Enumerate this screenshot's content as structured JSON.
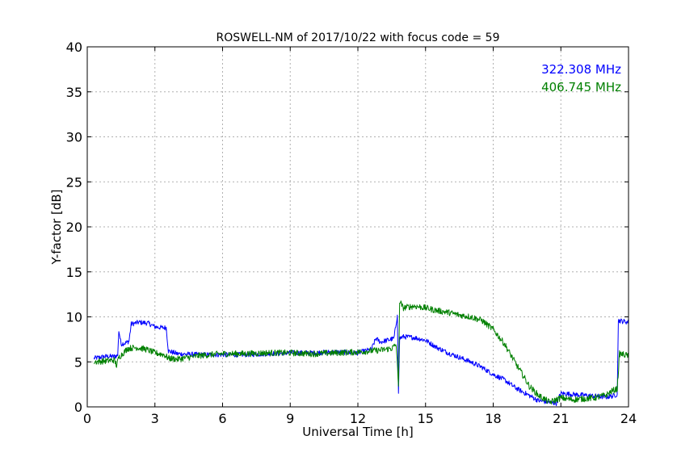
{
  "chart_data": {
    "type": "line",
    "title": "ROSWELL-NM of 2017/10/22 with focus code = 59",
    "xlabel": "Universal Time [h]",
    "ylabel": "Y-factor [dB]",
    "xlim": [
      0,
      24
    ],
    "ylim": [
      0,
      40
    ],
    "xticks": [
      0,
      3,
      6,
      9,
      12,
      15,
      18,
      21,
      24
    ],
    "yticks": [
      0,
      5,
      10,
      15,
      20,
      25,
      30,
      35,
      40
    ],
    "grid": true,
    "legend_position": "top-right",
    "series": [
      {
        "name": "322.308 MHz",
        "color": "#0000ff",
        "points": [
          [
            0.3,
            5.4
          ],
          [
            0.8,
            5.6
          ],
          [
            1.2,
            5.6
          ],
          [
            1.35,
            5.7
          ],
          [
            1.4,
            8.5
          ],
          [
            1.5,
            7.0
          ],
          [
            1.7,
            7.1
          ],
          [
            1.85,
            7.3
          ],
          [
            1.95,
            9.2
          ],
          [
            2.3,
            9.4
          ],
          [
            2.7,
            9.3
          ],
          [
            3.0,
            8.9
          ],
          [
            3.3,
            8.8
          ],
          [
            3.5,
            8.8
          ],
          [
            3.6,
            6.2
          ],
          [
            4.0,
            5.9
          ],
          [
            5.0,
            5.8
          ],
          [
            6.0,
            5.8
          ],
          [
            7.0,
            5.8
          ],
          [
            8.0,
            5.9
          ],
          [
            9.0,
            6.0
          ],
          [
            10.0,
            6.0
          ],
          [
            11.0,
            6.1
          ],
          [
            12.0,
            6.0
          ],
          [
            12.6,
            6.4
          ],
          [
            12.8,
            7.6
          ],
          [
            13.0,
            7.2
          ],
          [
            13.3,
            7.4
          ],
          [
            13.6,
            7.6
          ],
          [
            13.75,
            10.2
          ],
          [
            13.8,
            1.5
          ],
          [
            13.85,
            7.6
          ],
          [
            14.0,
            7.8
          ],
          [
            14.5,
            7.7
          ],
          [
            15.0,
            7.4
          ],
          [
            15.5,
            6.6
          ],
          [
            16.0,
            6.0
          ],
          [
            16.5,
            5.5
          ],
          [
            17.0,
            5.0
          ],
          [
            17.5,
            4.4
          ],
          [
            18.0,
            3.6
          ],
          [
            18.5,
            3.0
          ],
          [
            19.0,
            2.1
          ],
          [
            19.5,
            1.4
          ],
          [
            20.0,
            0.7
          ],
          [
            20.5,
            0.5
          ],
          [
            20.8,
            0.4
          ],
          [
            21.0,
            1.5
          ],
          [
            21.5,
            1.4
          ],
          [
            22.0,
            1.3
          ],
          [
            22.5,
            1.2
          ],
          [
            23.0,
            1.1
          ],
          [
            23.3,
            1.2
          ],
          [
            23.5,
            1.4
          ],
          [
            23.55,
            9.6
          ],
          [
            24.0,
            9.4
          ]
        ]
      },
      {
        "name": "406.745 MHz",
        "color": "#008000",
        "points": [
          [
            0.3,
            5.0
          ],
          [
            0.8,
            5.1
          ],
          [
            1.2,
            5.2
          ],
          [
            1.3,
            4.6
          ],
          [
            1.4,
            5.5
          ],
          [
            1.6,
            6.0
          ],
          [
            1.8,
            6.5
          ],
          [
            2.2,
            6.6
          ],
          [
            2.6,
            6.4
          ],
          [
            3.0,
            6.0
          ],
          [
            3.4,
            5.8
          ],
          [
            3.6,
            5.4
          ],
          [
            4.0,
            5.3
          ],
          [
            5.0,
            5.7
          ],
          [
            6.0,
            5.9
          ],
          [
            7.0,
            5.9
          ],
          [
            8.0,
            6.0
          ],
          [
            9.0,
            6.0
          ],
          [
            10.0,
            5.9
          ],
          [
            11.0,
            6.0
          ],
          [
            12.0,
            6.1
          ],
          [
            13.0,
            6.3
          ],
          [
            13.5,
            6.5
          ],
          [
            13.7,
            6.9
          ],
          [
            13.8,
            2.3
          ],
          [
            13.85,
            11.8
          ],
          [
            14.0,
            11.0
          ],
          [
            14.5,
            11.2
          ],
          [
            15.0,
            11.0
          ],
          [
            15.5,
            10.7
          ],
          [
            16.0,
            10.5
          ],
          [
            16.5,
            10.2
          ],
          [
            17.0,
            10.0
          ],
          [
            17.5,
            9.6
          ],
          [
            18.0,
            8.6
          ],
          [
            18.5,
            7.0
          ],
          [
            19.0,
            4.8
          ],
          [
            19.3,
            3.6
          ],
          [
            19.6,
            2.3
          ],
          [
            20.0,
            1.3
          ],
          [
            20.5,
            0.5
          ],
          [
            20.8,
            0.8
          ],
          [
            21.0,
            1.0
          ],
          [
            21.5,
            0.8
          ],
          [
            22.0,
            0.9
          ],
          [
            22.5,
            1.0
          ],
          [
            23.0,
            1.3
          ],
          [
            23.3,
            1.8
          ],
          [
            23.5,
            2.0
          ],
          [
            23.6,
            5.9
          ],
          [
            24.0,
            5.7
          ]
        ]
      }
    ]
  }
}
